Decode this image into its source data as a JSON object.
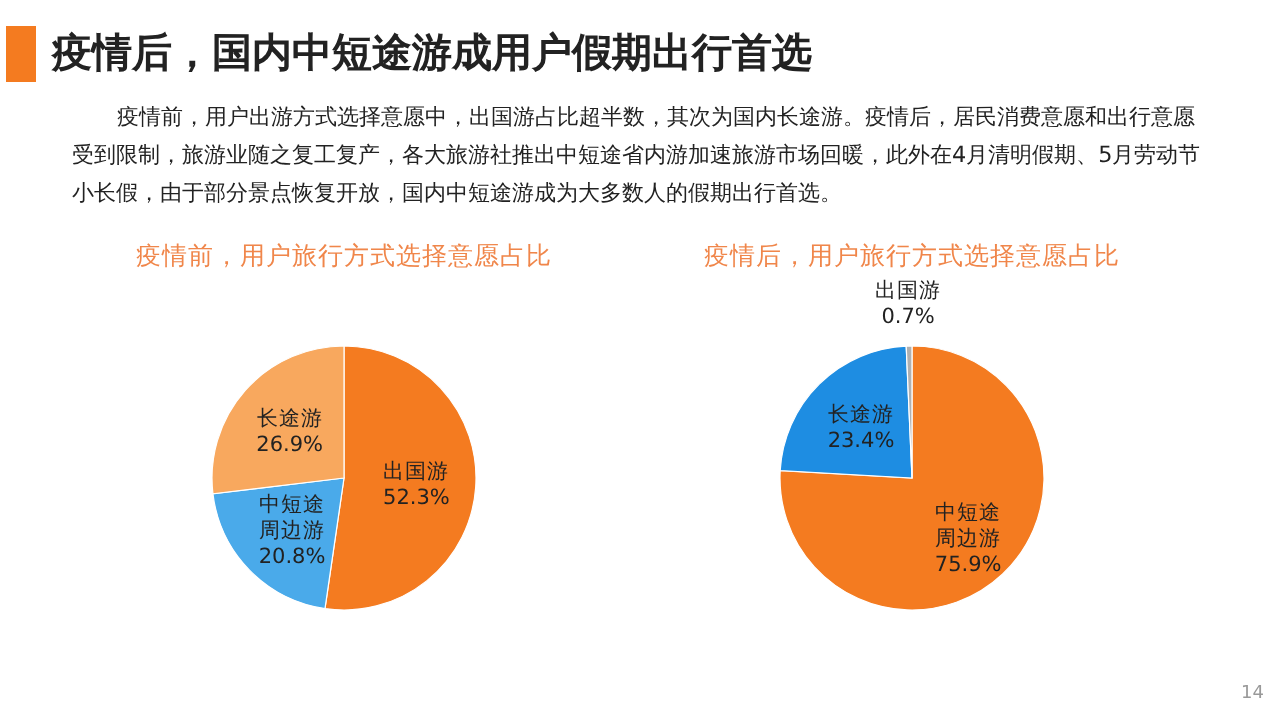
{
  "chart_data": [
    {
      "type": "other",
      "title": "疫情后，国内中短途游成用户假期出行首选",
      "annotations": [
        "疫情前，用户出游方式选择意愿中，出国游占比超半数，其次为国内长途游。疫情后，居民消费意愿和出行意愿受到限制，旅游业随之复工复产，各大旅游社推出中短途省内游加速旅游市场回暖，此外在4月清明假期、5月劳动节小长假，由于部分景点恢复开放，国内中短途游成为大多数人的假期出行首选。",
        "14"
      ]
    },
    {
      "type": "pie",
      "title": "疫情前，用户旅行方式选择意愿占比",
      "categories": [
        "出国游",
        "中短途周边游",
        "长途游"
      ],
      "values": [
        52.3,
        20.8,
        26.9
      ],
      "colors": [
        "#f47b20",
        "#4aaaea",
        "#f8a85e"
      ],
      "value_labels": [
        "52.3%",
        "20.8%",
        "26.9%"
      ]
    },
    {
      "type": "pie",
      "title": "疫情后，用户旅行方式选择意愿占比",
      "categories": [
        "中短途周边游",
        "长途游",
        "出国游"
      ],
      "values": [
        75.9,
        23.4,
        0.7
      ],
      "colors": [
        "#f47b20",
        "#1e8de2",
        "#b0b0b0"
      ],
      "value_labels": [
        "75.9%",
        "23.4%",
        "0.7%"
      ]
    }
  ]
}
